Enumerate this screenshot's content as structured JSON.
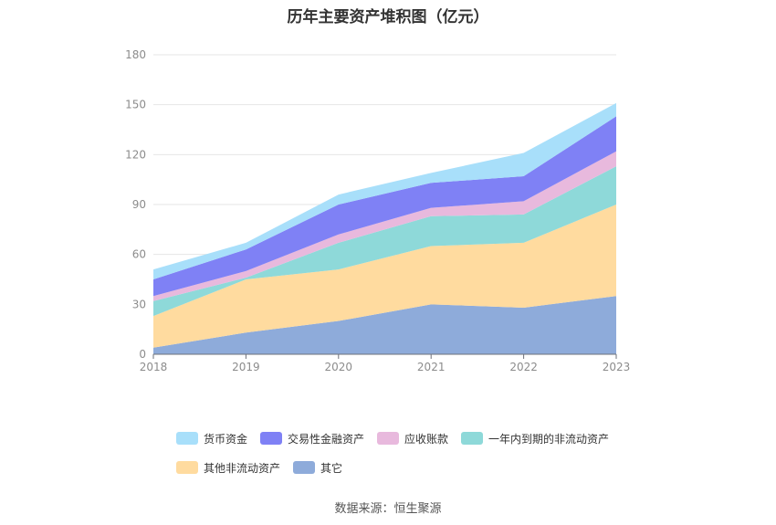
{
  "chart_data": {
    "type": "area",
    "stacked": true,
    "title": "历年主要资产堆积图（亿元）",
    "xlabel": "",
    "ylabel": "",
    "categories": [
      "2018",
      "2019",
      "2020",
      "2021",
      "2022",
      "2023"
    ],
    "ylim": [
      0,
      180
    ],
    "yticks": [
      0,
      30,
      60,
      90,
      120,
      150,
      180
    ],
    "grid": true,
    "legend_position": "bottom",
    "series": [
      {
        "name": "其它",
        "color": "#8eabda",
        "values": [
          4,
          13,
          20,
          30,
          28,
          35
        ]
      },
      {
        "name": "其他非流动资产",
        "color": "#ffdb9f",
        "values": [
          19,
          32,
          31,
          35,
          39,
          55
        ]
      },
      {
        "name": "一年内到期的非流动资产",
        "color": "#8ed9d9",
        "values": [
          9,
          1,
          16,
          18,
          17,
          23
        ]
      },
      {
        "name": "应收账款",
        "color": "#e8b9dd",
        "values": [
          3,
          4,
          5,
          5,
          8,
          9
        ]
      },
      {
        "name": "交易性金融资产",
        "color": "#7f81f5",
        "values": [
          10,
          13,
          18,
          15,
          15,
          21
        ]
      },
      {
        "name": "货币资金",
        "color": "#a8dffa",
        "values": [
          6,
          4,
          6,
          6,
          14,
          8
        ]
      }
    ]
  },
  "legend_order": [
    {
      "name": "货币资金",
      "color": "#a8dffa"
    },
    {
      "name": "交易性金融资产",
      "color": "#7f81f5"
    },
    {
      "name": "应收账款",
      "color": "#e8b9dd"
    },
    {
      "name": "一年内到期的非流动资产",
      "color": "#8ed9d9"
    },
    {
      "name": "其他非流动资产",
      "color": "#ffdb9f"
    },
    {
      "name": "其它",
      "color": "#8eabda"
    }
  ],
  "source": "数据来源：恒生聚源"
}
